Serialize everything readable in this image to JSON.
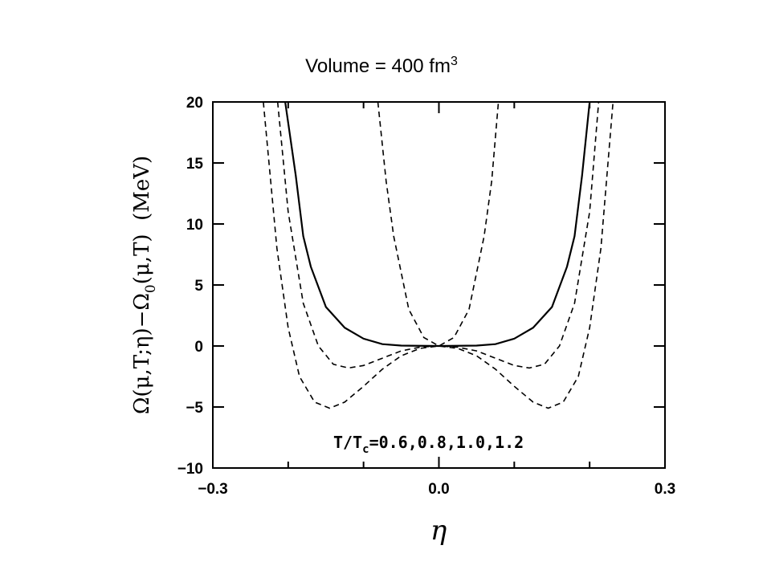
{
  "chart_data": {
    "type": "line",
    "title": "Volume = 400 fm",
    "title_sup": "3",
    "xlabel": "η",
    "ylabel": [
      "Ω(μ,T;η)−Ω",
      "0",
      "(μ,T)  (MeV)"
    ],
    "annotation": [
      "T/T",
      "c",
      "=0.6,0.8,1.0,1.2"
    ],
    "xlim": [
      -0.3,
      0.3
    ],
    "ylim": [
      -10,
      20
    ],
    "xticks": [
      {
        "value": -0.3,
        "label": "−0.3"
      },
      {
        "value": 0,
        "label": "0.0"
      },
      {
        "value": 0.3,
        "label": "0.3"
      }
    ],
    "xminorticks": [
      -0.2,
      -0.1,
      0.1,
      0.2
    ],
    "yticks": [
      {
        "value": -10,
        "label": "−10"
      },
      {
        "value": -5,
        "label": "−5"
      },
      0,
      5,
      10,
      15,
      20
    ],
    "series": [
      {
        "color": "#000000",
        "dashed": true,
        "x": [
          -0.233,
          -0.215,
          -0.2,
          -0.185,
          -0.165,
          -0.145,
          -0.125,
          -0.1,
          -0.075,
          -0.05,
          -0.025,
          0,
          0.025,
          0.05,
          0.075,
          0.1,
          0.125,
          0.145,
          0.165,
          0.185,
          0.2,
          0.215,
          0.231
        ],
        "values": [
          20,
          8,
          1.5,
          -2.5,
          -4.6,
          -5.1,
          -4.6,
          -3.3,
          -1.9,
          -0.8,
          -0.2,
          0,
          -0.2,
          -0.8,
          -1.9,
          -3.3,
          -4.6,
          -5.1,
          -4.6,
          -2.5,
          1.5,
          8,
          20
        ]
      },
      {
        "color": "#000000",
        "dashed": true,
        "x": [
          -0.214,
          -0.2,
          -0.18,
          -0.16,
          -0.14,
          -0.12,
          -0.1,
          -0.075,
          -0.05,
          -0.025,
          0,
          0.025,
          0.05,
          0.075,
          0.1,
          0.12,
          0.14,
          0.16,
          0.18,
          0.2,
          0.212
        ],
        "values": [
          20,
          11,
          3.5,
          0,
          -1.5,
          -1.8,
          -1.6,
          -1.0,
          -0.4,
          -0.1,
          0,
          -0.1,
          -0.4,
          -1.0,
          -1.6,
          -1.8,
          -1.5,
          0,
          3.5,
          11,
          20
        ]
      },
      {
        "color": "#000000",
        "dashed": false,
        "x": [
          -0.204,
          -0.19,
          -0.18,
          -0.17,
          -0.15,
          -0.125,
          -0.1,
          -0.075,
          -0.05,
          0,
          0.05,
          0.075,
          0.1,
          0.125,
          0.15,
          0.17,
          0.18,
          0.19,
          0.2
        ],
        "values": [
          20,
          14,
          9,
          6.5,
          3.2,
          1.5,
          0.6,
          0.15,
          0.03,
          0,
          0.03,
          0.15,
          0.6,
          1.5,
          3.2,
          6.5,
          9,
          14,
          20
        ]
      },
      {
        "color": "#000000",
        "dashed": true,
        "x": [
          -0.081,
          -0.07,
          -0.06,
          -0.04,
          -0.02,
          0,
          0.02,
          0.04,
          0.06,
          0.07,
          0.079
        ],
        "values": [
          20,
          13.5,
          9,
          3,
          0.7,
          0,
          0.7,
          3,
          9,
          13.5,
          20
        ]
      }
    ]
  }
}
